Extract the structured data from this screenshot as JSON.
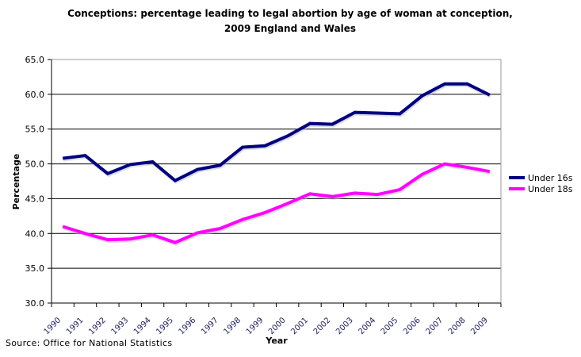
{
  "chart_data": {
    "type": "line",
    "title_lines": [
      "Conceptions: percentage leading to legal abortion by age of woman at conception,",
      "2009  England and Wales"
    ],
    "xlabel": "Year",
    "ylabel": "Percentage",
    "categories": [
      "1990",
      "1991",
      "1992",
      "1993",
      "1994",
      "1995",
      "1996",
      "1997",
      "1998",
      "1999",
      "2000",
      "2001",
      "2002",
      "2003",
      "2004",
      "2005",
      "2006",
      "2007",
      "2008",
      "2009"
    ],
    "ylim": [
      30,
      65
    ],
    "yticks": [
      "30.0",
      "35.0",
      "40.0",
      "45.0",
      "50.0",
      "55.0",
      "60.0",
      "65.0"
    ],
    "ytick_values": [
      30,
      35,
      40,
      45,
      50,
      55,
      60,
      65
    ],
    "grid": true,
    "legend_position": "right",
    "series": [
      {
        "name": "Under 16s",
        "color": "#000080",
        "values": [
          50.8,
          51.2,
          48.6,
          49.9,
          50.3,
          47.6,
          49.2,
          49.8,
          52.4,
          52.6,
          54.0,
          55.8,
          55.7,
          57.4,
          57.3,
          57.2,
          59.8,
          61.5,
          61.5,
          59.9
        ]
      },
      {
        "name": "Under 18s",
        "color": "#ff00ff",
        "values": [
          41.0,
          40.0,
          39.1,
          39.2,
          39.8,
          38.7,
          40.1,
          40.7,
          42.0,
          43.0,
          44.3,
          45.7,
          45.3,
          45.8,
          45.6,
          46.3,
          48.5,
          50.0,
          49.5,
          48.9
        ]
      }
    ],
    "source": "Source: Office for National Statistics"
  }
}
